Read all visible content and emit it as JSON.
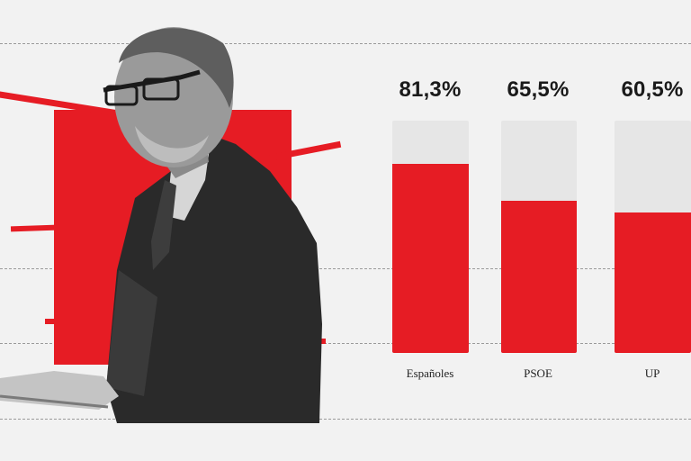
{
  "colors": {
    "accent": "#e61c24",
    "track": "#e6e6e6",
    "background": "#f2f2f2"
  },
  "photo": {
    "subject": "man-speaking-at-podium",
    "icon": "person-photo"
  },
  "chart_data": {
    "type": "bar",
    "categories": [
      "Españoles",
      "PSOE",
      "UP"
    ],
    "values": [
      81.3,
      65.5,
      60.5
    ],
    "value_labels": [
      "81,3%",
      "65,5%",
      "60,5%"
    ],
    "ylim": [
      0,
      100
    ],
    "unit": "%",
    "grid": true
  }
}
